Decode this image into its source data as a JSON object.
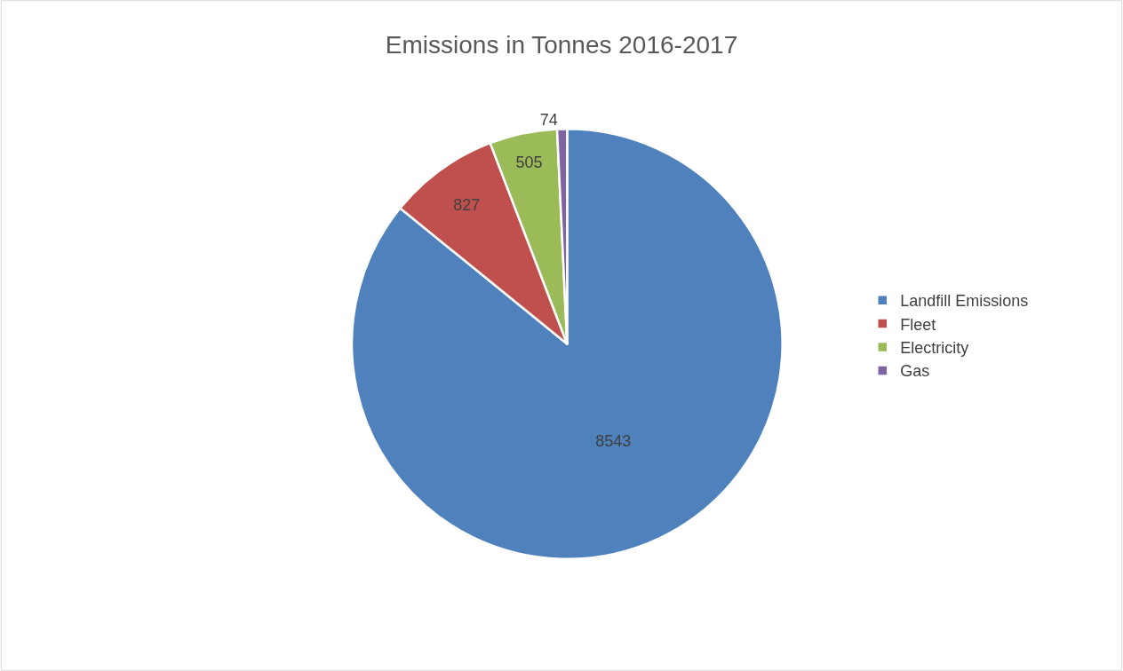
{
  "chart_data": {
    "type": "pie",
    "title": "Emissions in Tonnes 2016-2017",
    "categories": [
      "Landfill Emissions",
      "Fleet",
      "Electricity",
      "Gas"
    ],
    "values": [
      8543,
      827,
      505,
      74
    ],
    "colors": [
      "#4f81bd",
      "#c0504d",
      "#9bbb59",
      "#8064a2"
    ],
    "data_labels": true,
    "legend": "right"
  }
}
